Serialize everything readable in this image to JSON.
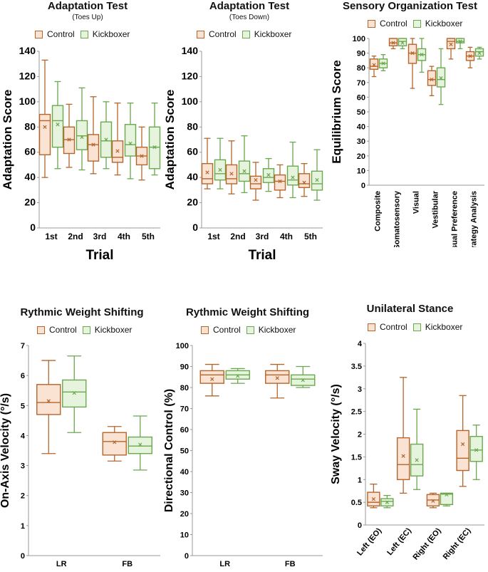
{
  "colors": {
    "control_stroke": "#b5652a",
    "control_fill": "#fbe3d4",
    "kick_stroke": "#6aa84f",
    "kick_fill": "#e6f3dd"
  },
  "legend": {
    "control": "Control",
    "kickboxer": "Kickboxer"
  },
  "chart_data": [
    {
      "id": "p1",
      "type": "box",
      "title": "Adaptation Test",
      "subtitle": "(Toes Up)",
      "xlabel": "Trial",
      "ylabel": "Adaptation Score",
      "ylim": [
        0,
        140
      ],
      "yticks": [
        0,
        20,
        40,
        60,
        80,
        100,
        120,
        140
      ],
      "categories": [
        "1st",
        "2nd",
        "3rd",
        "4th",
        "5th"
      ],
      "series": [
        {
          "name": "Control",
          "boxes": [
            {
              "min": 40,
              "q1": 58,
              "median": 85,
              "q3": 90,
              "max": 133,
              "mean": 80
            },
            {
              "min": 48,
              "q1": 59,
              "median": 70,
              "q3": 80,
              "max": 98,
              "mean": 70
            },
            {
              "min": 43,
              "q1": 53,
              "median": 66,
              "q3": 74,
              "max": 104,
              "mean": 66
            },
            {
              "min": 42,
              "q1": 52,
              "median": 56,
              "q3": 69,
              "max": 99,
              "mean": 61
            },
            {
              "min": 38,
              "q1": 50,
              "median": 57,
              "q3": 64,
              "max": 80,
              "mean": 57
            }
          ]
        },
        {
          "name": "Kickboxer",
          "boxes": [
            {
              "min": 47,
              "q1": 64,
              "median": 85,
              "q3": 97,
              "max": 116,
              "mean": 82
            },
            {
              "min": 46,
              "q1": 62,
              "median": 73,
              "q3": 85,
              "max": 111,
              "mean": 72
            },
            {
              "min": 47,
              "q1": 56,
              "median": 69,
              "q3": 84,
              "max": 100,
              "mean": 70
            },
            {
              "min": 39,
              "q1": 57,
              "median": 66,
              "q3": 82,
              "max": 99,
              "mean": 67
            },
            {
              "min": 42,
              "q1": 47,
              "median": 64,
              "q3": 80,
              "max": 99,
              "mean": 64
            }
          ]
        }
      ]
    },
    {
      "id": "p2",
      "type": "box",
      "title": "Adaptation Test",
      "subtitle": "(Toes Down)",
      "xlabel": "Trial",
      "ylabel": "Adaptation Score",
      "ylim": [
        0,
        140
      ],
      "yticks": [
        0,
        20,
        40,
        60,
        80,
        100,
        120,
        140
      ],
      "categories": [
        "1st",
        "2nd",
        "3rd",
        "4th",
        "5th"
      ],
      "series": [
        {
          "name": "Control",
          "boxes": [
            {
              "min": 31,
              "q1": 35,
              "median": 39,
              "q3": 51,
              "max": 71,
              "mean": 44
            },
            {
              "min": 27,
              "q1": 35,
              "median": 39,
              "q3": 50,
              "max": 69,
              "mean": 43
            },
            {
              "min": 22,
              "q1": 31,
              "median": 35,
              "q3": 41,
              "max": 52,
              "mean": 38
            },
            {
              "min": 24,
              "q1": 30,
              "median": 37,
              "q3": 42,
              "max": 50,
              "mean": 37
            },
            {
              "min": 25,
              "q1": 32,
              "median": 35,
              "q3": 43,
              "max": 51,
              "mean": 36
            }
          ]
        },
        {
          "name": "Kickboxer",
          "boxes": [
            {
              "min": 31,
              "q1": 38,
              "median": 43,
              "q3": 54,
              "max": 71,
              "mean": 46
            },
            {
              "min": 28,
              "q1": 37,
              "median": 43,
              "q3": 53,
              "max": 73,
              "mean": 45
            },
            {
              "min": 29,
              "q1": 36,
              "median": 40,
              "q3": 47,
              "max": 55,
              "mean": 42
            },
            {
              "min": 24,
              "q1": 34,
              "median": 38,
              "q3": 49,
              "max": 68,
              "mean": 40
            },
            {
              "min": 22,
              "q1": 30,
              "median": 35,
              "q3": 45,
              "max": 62,
              "mean": 38
            }
          ]
        }
      ]
    },
    {
      "id": "p3",
      "type": "box",
      "title": "Sensory Organization Test",
      "subtitle": "",
      "xlabel": "",
      "ylabel": "Equilibrium Score",
      "ylim": [
        0,
        100
      ],
      "yticks": [
        0,
        10,
        20,
        30,
        40,
        50,
        60,
        70,
        80,
        90,
        100
      ],
      "categories": [
        "Composite",
        "Somatosensory",
        "Visual",
        "Vestibular",
        "Visual Preference",
        "Strategy Analysis"
      ],
      "series": [
        {
          "name": "Control",
          "boxes": [
            {
              "min": 74,
              "q1": 79,
              "median": 81,
              "q3": 86,
              "max": 88,
              "mean": 82
            },
            {
              "min": 93,
              "q1": 95,
              "median": 97,
              "q3": 100,
              "max": 100,
              "mean": 97
            },
            {
              "min": 66,
              "q1": 83,
              "median": 90,
              "q3": 96,
              "max": 100,
              "mean": 90
            },
            {
              "min": 61,
              "q1": 68,
              "median": 72,
              "q3": 78,
              "max": 81,
              "mean": 72
            },
            {
              "min": 86,
              "q1": 93,
              "median": 98,
              "q3": 100,
              "max": 100,
              "mean": 96
            },
            {
              "min": 80,
              "q1": 85,
              "median": 88,
              "q3": 91,
              "max": 94,
              "mean": 88
            }
          ]
        },
        {
          "name": "Kickboxer",
          "boxes": [
            {
              "min": 78,
              "q1": 80,
              "median": 83,
              "q3": 86,
              "max": 89,
              "mean": 83
            },
            {
              "min": 93,
              "q1": 95,
              "median": 98,
              "q3": 100,
              "max": 100,
              "mean": 97
            },
            {
              "min": 77,
              "q1": 85,
              "median": 89,
              "q3": 93,
              "max": 100,
              "mean": 89
            },
            {
              "min": 55,
              "q1": 67,
              "median": 72,
              "q3": 80,
              "max": 93,
              "mean": 73
            },
            {
              "min": 93,
              "q1": 97,
              "median": 98,
              "q3": 100,
              "max": 100,
              "mean": 98
            },
            {
              "min": 86,
              "q1": 88,
              "median": 91,
              "q3": 93,
              "max": 94,
              "mean": 90
            }
          ]
        }
      ]
    },
    {
      "id": "p4",
      "type": "box",
      "title": "Rythmic Weight Shifting",
      "subtitle": "",
      "xlabel": "",
      "ylabel": "On-Axis Velocity (°/s)",
      "ylim": [
        0,
        7
      ],
      "yticks": [
        0,
        1,
        2,
        3,
        4,
        5,
        6,
        7
      ],
      "categories": [
        "LR",
        "FB"
      ],
      "series": [
        {
          "name": "Control",
          "boxes": [
            {
              "min": 3.4,
              "q1": 4.7,
              "median": 5.1,
              "q3": 5.7,
              "max": 6.5,
              "mean": 5.15
            },
            {
              "min": 3.15,
              "q1": 3.35,
              "median": 3.8,
              "q3": 4.1,
              "max": 4.3,
              "mean": 3.78
            }
          ]
        },
        {
          "name": "Kickboxer",
          "boxes": [
            {
              "min": 4.1,
              "q1": 4.95,
              "median": 5.45,
              "q3": 5.85,
              "max": 6.65,
              "mean": 5.42
            },
            {
              "min": 2.85,
              "q1": 3.4,
              "median": 3.65,
              "q3": 3.95,
              "max": 4.65,
              "mean": 3.7
            }
          ]
        }
      ]
    },
    {
      "id": "p5",
      "type": "box",
      "title": "Rythmic Weight Shifting",
      "subtitle": "",
      "xlabel": "",
      "ylabel": "Directional Control (%)",
      "ylim": [
        0,
        100
      ],
      "yticks": [
        0,
        10,
        20,
        30,
        40,
        50,
        60,
        70,
        80,
        90,
        100
      ],
      "categories": [
        "LR",
        "FB"
      ],
      "series": [
        {
          "name": "Control",
          "boxes": [
            {
              "min": 76,
              "q1": 82,
              "median": 86,
              "q3": 88,
              "max": 91,
              "mean": 84
            },
            {
              "min": 75,
              "q1": 82,
              "median": 86,
              "q3": 88,
              "max": 91,
              "mean": 84.5
            }
          ]
        },
        {
          "name": "Kickboxer",
          "boxes": [
            {
              "min": 82,
              "q1": 84,
              "median": 86,
              "q3": 88,
              "max": 89,
              "mean": 85.5
            },
            {
              "min": 80,
              "q1": 81,
              "median": 84,
              "q3": 86,
              "max": 90,
              "mean": 83.5
            }
          ]
        }
      ]
    },
    {
      "id": "p6",
      "type": "box",
      "title": "Unilateral Stance",
      "subtitle": "",
      "xlabel": "",
      "ylabel": "Sway Velocity (°/s)",
      "ylim": [
        0,
        4
      ],
      "yticks": [
        0,
        0.5,
        1,
        1.5,
        2,
        2.5,
        3,
        3.5,
        4
      ],
      "categories": [
        "Left (EO)",
        "Left (EC)",
        "Right (EO)",
        "Right (EC)"
      ],
      "series": [
        {
          "name": "Control",
          "boxes": [
            {
              "min": 0.38,
              "q1": 0.42,
              "median": 0.5,
              "q3": 0.72,
              "max": 0.9,
              "mean": 0.57
            },
            {
              "min": 0.7,
              "q1": 1.0,
              "median": 1.33,
              "q3": 1.92,
              "max": 3.25,
              "mean": 1.52
            },
            {
              "min": 0.38,
              "q1": 0.42,
              "median": 0.55,
              "q3": 0.67,
              "max": 0.7,
              "mean": 0.53
            },
            {
              "min": 0.85,
              "q1": 1.2,
              "median": 1.47,
              "q3": 2.08,
              "max": 2.85,
              "mean": 1.78
            }
          ]
        },
        {
          "name": "Kickboxer",
          "boxes": [
            {
              "min": 0.38,
              "q1": 0.42,
              "median": 0.52,
              "q3": 0.58,
              "max": 0.65,
              "mean": 0.5
            },
            {
              "min": 0.78,
              "q1": 1.08,
              "median": 1.33,
              "q3": 1.78,
              "max": 2.55,
              "mean": 1.43
            },
            {
              "min": 0.42,
              "q1": 0.45,
              "median": 0.68,
              "q3": 0.7,
              "max": 0.7,
              "mean": 0.67
            },
            {
              "min": 1.0,
              "q1": 1.4,
              "median": 1.65,
              "q3": 1.95,
              "max": 2.2,
              "mean": 1.65
            }
          ]
        }
      ]
    }
  ]
}
